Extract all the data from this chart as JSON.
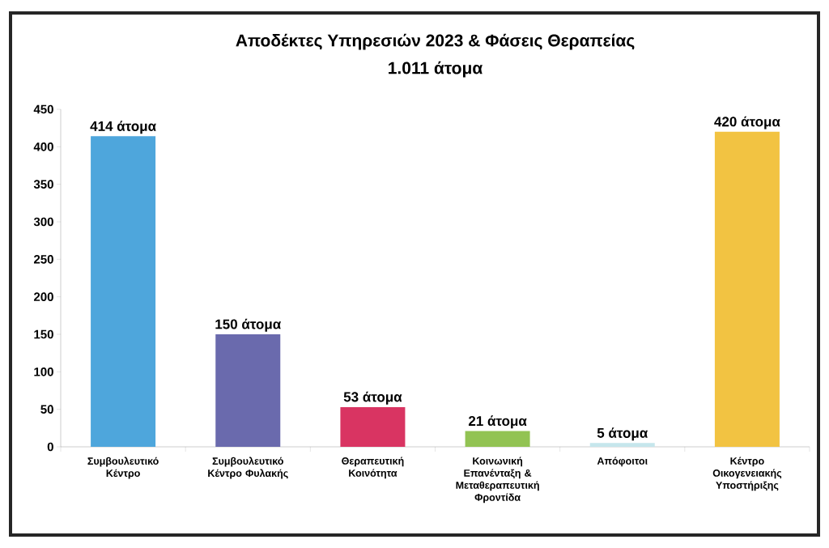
{
  "chart_data": {
    "type": "bar",
    "title": "Αποδέκτες Υπηρεσιών 2023 & Φάσεις Θεραπείας",
    "subtitle": "1.011 άτομα",
    "categories": [
      "Συμβουλευτικό Κέντρο",
      "Συμβουλευτικό Κέντρο Φυλακής",
      "Θεραπευτική Κοινότητα",
      "Κοινωνική Επανένταξη & Μεταθεραπευτική Φροντίδα",
      "Απόφοιτοι",
      "Κέντρο Οικογενειακής Υποστήριξης"
    ],
    "values": [
      414,
      150,
      53,
      21,
      5,
      420
    ],
    "colors": [
      "#4ea6dc",
      "#6a6aad",
      "#d93462",
      "#92c353",
      "#c6e6ec",
      "#f2c342"
    ],
    "value_labels": [
      "414 άτομα",
      "150 άτομα",
      "53 άτομα",
      "21 άτομα",
      "5 άτομα",
      "420 άτομα"
    ],
    "ylim": [
      0,
      450
    ],
    "yticks": [
      0,
      50,
      100,
      150,
      200,
      250,
      300,
      350,
      400,
      450
    ]
  }
}
